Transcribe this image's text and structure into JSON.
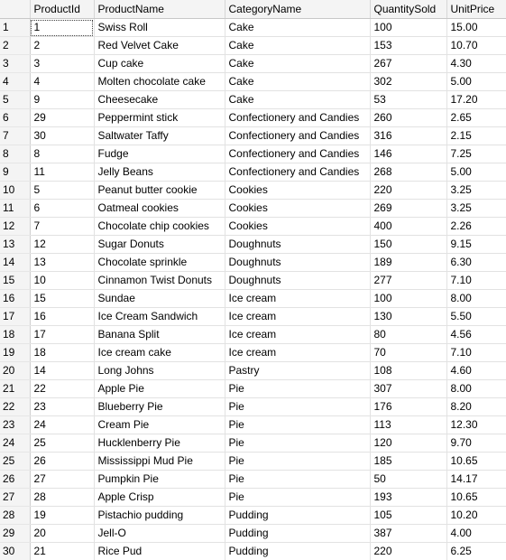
{
  "columns": [
    "ProductId",
    "ProductName",
    "CategoryName",
    "QuantitySold",
    "UnitPrice"
  ],
  "rows": [
    {
      "n": "1",
      "id": "1",
      "name": "Swiss Roll",
      "cat": "Cake",
      "qty": "100",
      "price": "15.00"
    },
    {
      "n": "2",
      "id": "2",
      "name": "Red Velvet Cake",
      "cat": "Cake",
      "qty": "153",
      "price": "10.70"
    },
    {
      "n": "3",
      "id": "3",
      "name": "Cup cake",
      "cat": "Cake",
      "qty": "267",
      "price": "4.30"
    },
    {
      "n": "4",
      "id": "4",
      "name": "Molten chocolate cake",
      "cat": "Cake",
      "qty": "302",
      "price": "5.00"
    },
    {
      "n": "5",
      "id": "9",
      "name": "Cheesecake",
      "cat": "Cake",
      "qty": "53",
      "price": "17.20"
    },
    {
      "n": "6",
      "id": "29",
      "name": "Peppermint stick",
      "cat": "Confectionery and Candies",
      "qty": "260",
      "price": "2.65"
    },
    {
      "n": "7",
      "id": "30",
      "name": "Saltwater Taffy",
      "cat": "Confectionery and Candies",
      "qty": "316",
      "price": "2.15"
    },
    {
      "n": "8",
      "id": "8",
      "name": "Fudge",
      "cat": "Confectionery and Candies",
      "qty": "146",
      "price": "7.25"
    },
    {
      "n": "9",
      "id": "11",
      "name": "Jelly Beans",
      "cat": "Confectionery and Candies",
      "qty": "268",
      "price": "5.00"
    },
    {
      "n": "10",
      "id": "5",
      "name": "Peanut butter cookie",
      "cat": "Cookies",
      "qty": "220",
      "price": "3.25"
    },
    {
      "n": "11",
      "id": "6",
      "name": "Oatmeal cookies",
      "cat": "Cookies",
      "qty": "269",
      "price": "3.25"
    },
    {
      "n": "12",
      "id": "7",
      "name": "Chocolate chip cookies",
      "cat": "Cookies",
      "qty": "400",
      "price": "2.26"
    },
    {
      "n": "13",
      "id": "12",
      "name": "Sugar Donuts",
      "cat": "Doughnuts",
      "qty": "150",
      "price": "9.15"
    },
    {
      "n": "14",
      "id": "13",
      "name": "Chocolate sprinkle",
      "cat": "Doughnuts",
      "qty": "189",
      "price": "6.30"
    },
    {
      "n": "15",
      "id": "10",
      "name": "Cinnamon Twist Donuts",
      "cat": "Doughnuts",
      "qty": "277",
      "price": "7.10"
    },
    {
      "n": "16",
      "id": "15",
      "name": "Sundae",
      "cat": "Ice cream",
      "qty": "100",
      "price": "8.00"
    },
    {
      "n": "17",
      "id": "16",
      "name": "Ice Cream Sandwich",
      "cat": "Ice cream",
      "qty": "130",
      "price": "5.50"
    },
    {
      "n": "18",
      "id": "17",
      "name": "Banana Split",
      "cat": "Ice cream",
      "qty": "80",
      "price": "4.56"
    },
    {
      "n": "19",
      "id": "18",
      "name": "Ice cream cake",
      "cat": "Ice cream",
      "qty": "70",
      "price": "7.10"
    },
    {
      "n": "20",
      "id": "14",
      "name": "Long Johns",
      "cat": "Pastry",
      "qty": "108",
      "price": "4.60"
    },
    {
      "n": "21",
      "id": "22",
      "name": "Apple Pie",
      "cat": "Pie",
      "qty": "307",
      "price": "8.00"
    },
    {
      "n": "22",
      "id": "23",
      "name": "Blueberry Pie",
      "cat": "Pie",
      "qty": "176",
      "price": "8.20"
    },
    {
      "n": "23",
      "id": "24",
      "name": "Cream Pie",
      "cat": "Pie",
      "qty": "113",
      "price": "12.30"
    },
    {
      "n": "24",
      "id": "25",
      "name": "Hucklenberry Pie",
      "cat": "Pie",
      "qty": "120",
      "price": "9.70"
    },
    {
      "n": "25",
      "id": "26",
      "name": "Mississippi Mud Pie",
      "cat": "Pie",
      "qty": "185",
      "price": "10.65"
    },
    {
      "n": "26",
      "id": "27",
      "name": "Pumpkin Pie",
      "cat": "Pie",
      "qty": "50",
      "price": "14.17"
    },
    {
      "n": "27",
      "id": "28",
      "name": "Apple Crisp",
      "cat": "Pie",
      "qty": "193",
      "price": "10.65"
    },
    {
      "n": "28",
      "id": "19",
      "name": "Pistachio pudding",
      "cat": "Pudding",
      "qty": "105",
      "price": "10.20"
    },
    {
      "n": "29",
      "id": "20",
      "name": "Jell-O",
      "cat": "Pudding",
      "qty": "387",
      "price": "4.00"
    },
    {
      "n": "30",
      "id": "21",
      "name": "Rice Pud",
      "cat": "Pudding",
      "qty": "220",
      "price": "6.25"
    }
  ]
}
